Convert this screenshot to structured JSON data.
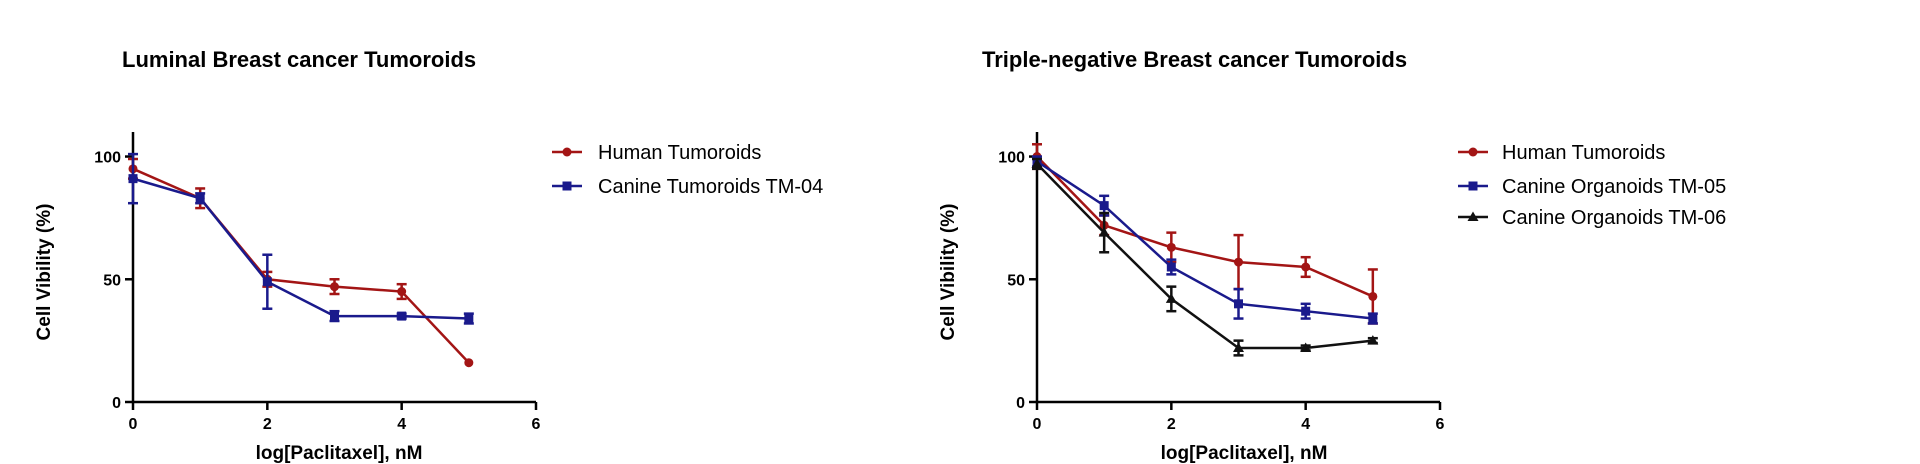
{
  "chart_data": [
    {
      "type": "line",
      "title": "Luminal Breast cancer Tumoroids",
      "xlabel": "log[Paclitaxel], nM",
      "ylabel": "Cell Vibility (%)",
      "xlim": [
        0,
        6
      ],
      "ylim": [
        0,
        110
      ],
      "xticks": [
        0,
        2,
        4,
        6
      ],
      "yticks": [
        0,
        50,
        100
      ],
      "grid": false,
      "legend_position": "right",
      "series": [
        {
          "name": "Human Tumoroids",
          "color": "#a31515",
          "marker": "circle",
          "x": [
            0,
            1,
            2,
            3,
            4,
            5
          ],
          "y": [
            95,
            83,
            50,
            47,
            45,
            16
          ],
          "err": [
            4,
            4,
            3,
            3,
            3,
            0
          ]
        },
        {
          "name": "Canine Tumoroids TM-04",
          "color": "#1a1a8c",
          "marker": "square",
          "x": [
            0,
            1,
            2,
            3,
            4,
            5
          ],
          "y": [
            91,
            83,
            49,
            35,
            35,
            34
          ],
          "err": [
            10,
            2,
            11,
            2,
            1,
            2
          ]
        }
      ]
    },
    {
      "type": "line",
      "title": "Triple-negative Breast cancer Tumoroids",
      "xlabel": "log[Paclitaxel], nM",
      "ylabel": "Cell Vibility (%)",
      "xlim": [
        0,
        6
      ],
      "ylim": [
        0,
        110
      ],
      "xticks": [
        0,
        2,
        4,
        6
      ],
      "yticks": [
        0,
        50,
        100
      ],
      "grid": false,
      "legend_position": "right",
      "series": [
        {
          "name": "Human Tumoroids",
          "color": "#a31515",
          "marker": "circle",
          "x": [
            0,
            1,
            2,
            3,
            4,
            5
          ],
          "y": [
            100,
            72,
            63,
            57,
            55,
            43
          ],
          "err": [
            5,
            4,
            6,
            11,
            4,
            11
          ]
        },
        {
          "name": "Canine Organoids TM-05",
          "color": "#1a1a8c",
          "marker": "square",
          "x": [
            0,
            1,
            2,
            3,
            4,
            5
          ],
          "y": [
            98,
            80,
            55,
            40,
            37,
            34
          ],
          "err": [
            2,
            4,
            3,
            6,
            3,
            2
          ]
        },
        {
          "name": "Canine Organoids TM-06",
          "color": "#111111",
          "marker": "triangle",
          "x": [
            0,
            1,
            2,
            3,
            4,
            5
          ],
          "y": [
            97,
            69,
            42,
            22,
            22,
            25
          ],
          "err": [
            2,
            8,
            5,
            3,
            1,
            1
          ]
        }
      ]
    }
  ]
}
